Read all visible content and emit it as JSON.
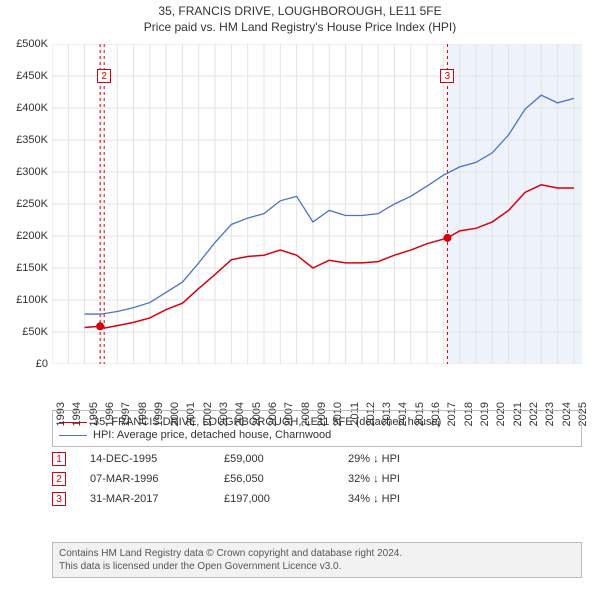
{
  "title_line1": "35, FRANCIS DRIVE, LOUGHBOROUGH, LE11 5FE",
  "title_line2": "Price paid vs. HM Land Registry's House Price Index (HPI)",
  "chart": {
    "type": "line",
    "background_color": "#ffffff",
    "grid_color": "#e3e3e3",
    "grid_width": 1,
    "xlim": [
      1993,
      2025.5
    ],
    "ylim": [
      0,
      500000
    ],
    "ytick_step": 50000,
    "yticks_labels": [
      "£0",
      "£50K",
      "£100K",
      "£150K",
      "£200K",
      "£250K",
      "£300K",
      "£350K",
      "£400K",
      "£450K",
      "£500K"
    ],
    "xticks": [
      1993,
      1994,
      1995,
      1996,
      1997,
      1998,
      1999,
      2000,
      2001,
      2002,
      2003,
      2004,
      2005,
      2006,
      2007,
      2008,
      2009,
      2010,
      2011,
      2012,
      2013,
      2014,
      2015,
      2016,
      2017,
      2018,
      2019,
      2020,
      2021,
      2022,
      2023,
      2024,
      2025
    ],
    "highlight_band": {
      "xstart": 2017.25,
      "color": "#eef3fb"
    },
    "series": [
      {
        "name": "property",
        "label": "35, FRANCIS DRIVE, LOUGHBOROUGH, LE11 5FE (detached house)",
        "color": "#d9000d",
        "line_width": 1.5,
        "data": [
          [
            1995.0,
            57000
          ],
          [
            1995.95,
            59000
          ],
          [
            1996.2,
            56050
          ],
          [
            1997,
            60000
          ],
          [
            1998,
            65000
          ],
          [
            1999,
            72000
          ],
          [
            2000,
            85000
          ],
          [
            2001,
            95000
          ],
          [
            2002,
            118000
          ],
          [
            2003,
            140000
          ],
          [
            2004,
            163000
          ],
          [
            2005,
            168000
          ],
          [
            2006,
            170000
          ],
          [
            2007,
            178000
          ],
          [
            2008,
            170000
          ],
          [
            2009,
            150000
          ],
          [
            2010,
            162000
          ],
          [
            2011,
            158000
          ],
          [
            2012,
            158000
          ],
          [
            2013,
            160000
          ],
          [
            2014,
            170000
          ],
          [
            2015,
            178000
          ],
          [
            2016,
            188000
          ],
          [
            2017.25,
            197000
          ],
          [
            2018,
            208000
          ],
          [
            2019,
            212000
          ],
          [
            2020,
            222000
          ],
          [
            2021,
            240000
          ],
          [
            2022,
            268000
          ],
          [
            2023,
            280000
          ],
          [
            2024,
            275000
          ],
          [
            2025,
            275000
          ]
        ]
      },
      {
        "name": "hpi",
        "label": "HPI: Average price, detached house, Charnwood",
        "color": "#4a72c8",
        "line_width": 1.3,
        "data": [
          [
            1995.0,
            78000
          ],
          [
            1996,
            78000
          ],
          [
            1997,
            82000
          ],
          [
            1998,
            88000
          ],
          [
            1999,
            96000
          ],
          [
            2000,
            112000
          ],
          [
            2001,
            128000
          ],
          [
            2002,
            158000
          ],
          [
            2003,
            190000
          ],
          [
            2004,
            218000
          ],
          [
            2005,
            228000
          ],
          [
            2006,
            235000
          ],
          [
            2007,
            255000
          ],
          [
            2008,
            262000
          ],
          [
            2009,
            222000
          ],
          [
            2010,
            240000
          ],
          [
            2011,
            232000
          ],
          [
            2012,
            232000
          ],
          [
            2013,
            235000
          ],
          [
            2014,
            250000
          ],
          [
            2015,
            262000
          ],
          [
            2016,
            278000
          ],
          [
            2017,
            295000
          ],
          [
            2018,
            308000
          ],
          [
            2019,
            315000
          ],
          [
            2020,
            330000
          ],
          [
            2021,
            358000
          ],
          [
            2022,
            398000
          ],
          [
            2023,
            420000
          ],
          [
            2024,
            408000
          ],
          [
            2025,
            415000
          ]
        ]
      }
    ],
    "vlines": [
      {
        "x": 1995.95,
        "color": "#d9000d",
        "dash": "3,3"
      },
      {
        "x": 1996.2,
        "color": "#d9000d",
        "dash": "3,3"
      },
      {
        "x": 2017.25,
        "color": "#d9000d",
        "dash": "3,3"
      }
    ],
    "sale_markers": [
      {
        "n": "1",
        "x": 1995.95,
        "y": 59000,
        "color": "#d9000d"
      },
      {
        "n": "2",
        "x": 1996.2,
        "label_y": 450000,
        "color": "#d9000d"
      },
      {
        "n": "3",
        "x": 2017.25,
        "y": 197000,
        "label_y": 450000,
        "color": "#d9000d"
      }
    ],
    "label_fontsize": 11,
    "title_fontsize": 12
  },
  "legend": {
    "rows": [
      {
        "color": "#d9000d",
        "text": "35, FRANCIS DRIVE, LOUGHBOROUGH, LE11 5FE (detached house)"
      },
      {
        "color": "#4a72c8",
        "text": "HPI: Average price, detached house, Charnwood"
      }
    ]
  },
  "annotations": [
    {
      "n": "1",
      "date": "14-DEC-1995",
      "price": "£59,000",
      "delta": "29% ↓ HPI",
      "color": "#d9000d"
    },
    {
      "n": "2",
      "date": "07-MAR-1996",
      "price": "£56,050",
      "delta": "32% ↓ HPI",
      "color": "#d9000d"
    },
    {
      "n": "3",
      "date": "31-MAR-2017",
      "price": "£197,000",
      "delta": "34% ↓ HPI",
      "color": "#d9000d"
    }
  ],
  "footer_line1": "Contains HM Land Registry data © Crown copyright and database right 2024.",
  "footer_line2": "This data is licensed under the Open Government Licence v3.0."
}
